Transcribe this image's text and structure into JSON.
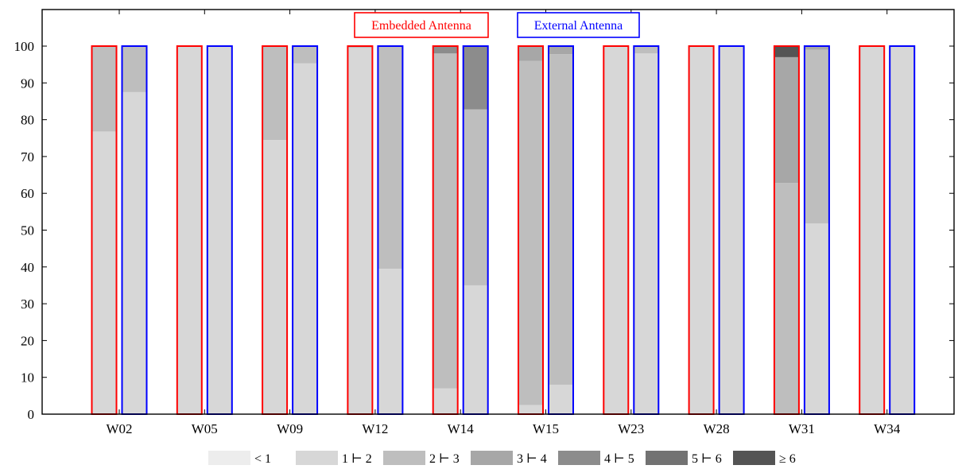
{
  "chart_data": {
    "type": "bar",
    "stacked": true,
    "categories": [
      "W02",
      "W05",
      "W09",
      "W12",
      "W14",
      "W15",
      "W23",
      "W28",
      "W31",
      "W34"
    ],
    "ylim": [
      0,
      100
    ],
    "yticks": [
      0,
      10,
      20,
      30,
      40,
      50,
      60,
      70,
      80,
      90,
      100
    ],
    "grid": false,
    "legend_position": "bottom",
    "bin_labels": [
      "< 1",
      "1 ⊢ 2",
      "2 ⊢ 3",
      "3 ⊢ 4",
      "4 ⊢ 5",
      "5 ⊢ 6",
      "≥ 6"
    ],
    "bin_colors": [
      "#ededed",
      "#d7d7d7",
      "#bebebe",
      "#a7a7a7",
      "#8c8c8c",
      "#727272",
      "#545454"
    ],
    "groups": [
      {
        "label": "Embedded Antenna",
        "color": "#ff0000",
        "values": [
          [
            0,
            76.8,
            23.2,
            0,
            0,
            0,
            0
          ],
          [
            0,
            100,
            0,
            0,
            0,
            0,
            0
          ],
          [
            0,
            74.5,
            25.5,
            0,
            0,
            0,
            0
          ],
          [
            0,
            99.5,
            0.5,
            0,
            0,
            0,
            0
          ],
          [
            0,
            7,
            91,
            0,
            2,
            0,
            0
          ],
          [
            0,
            2.5,
            93.5,
            4,
            0,
            0,
            0
          ],
          [
            0,
            100,
            0,
            0,
            0,
            0,
            0
          ],
          [
            0,
            100,
            0,
            0,
            0,
            0,
            0
          ],
          [
            0,
            0,
            62.8,
            34.2,
            0,
            0,
            3
          ],
          [
            0,
            100,
            0,
            0,
            0,
            0,
            0
          ]
        ]
      },
      {
        "label": "External Antenna",
        "color": "#0000ff",
        "values": [
          [
            0,
            87.5,
            12.5,
            0,
            0,
            0,
            0
          ],
          [
            0,
            100,
            0,
            0,
            0,
            0,
            0
          ],
          [
            0,
            95.3,
            4.7,
            0,
            0,
            0,
            0
          ],
          [
            0,
            39.5,
            60.5,
            0,
            0,
            0,
            0
          ],
          [
            0,
            35,
            47.8,
            0,
            17.2,
            0,
            0
          ],
          [
            0,
            8,
            89.8,
            2.2,
            0,
            0,
            0
          ],
          [
            0,
            98,
            2,
            0,
            0,
            0,
            0
          ],
          [
            0,
            100,
            0,
            0,
            0,
            0,
            0
          ],
          [
            0,
            51.8,
            47.2,
            1,
            0,
            0,
            0
          ],
          [
            0,
            100,
            0,
            0,
            0,
            0,
            0
          ]
        ]
      }
    ]
  }
}
